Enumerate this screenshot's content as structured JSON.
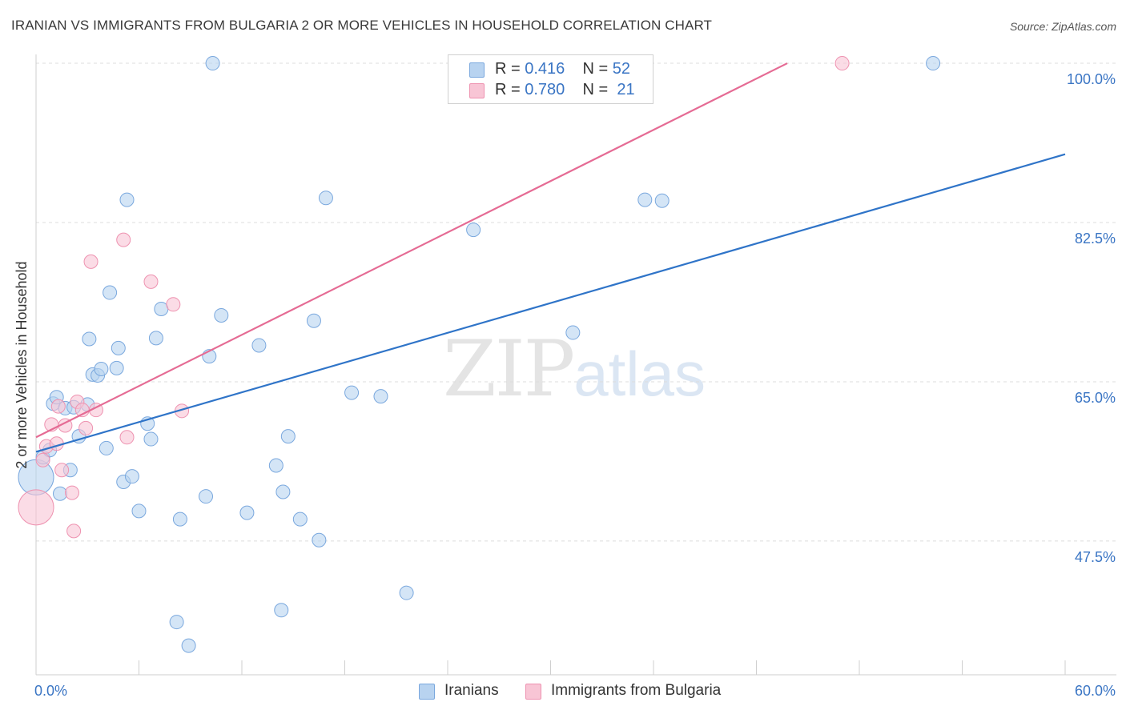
{
  "header": {
    "title": "IRANIAN VS IMMIGRANTS FROM BULGARIA 2 OR MORE VEHICLES IN HOUSEHOLD CORRELATION CHART",
    "source": "Source: ZipAtlas.com"
  },
  "watermark": {
    "zip": "ZIP",
    "atlas": "atlas"
  },
  "legend_top": {
    "rows": [
      {
        "r_label": "R =",
        "r_value": "0.416",
        "n_label": "N =",
        "n_value": "52"
      },
      {
        "r_label": "R =",
        "r_value": "0.780",
        "n_label": "N =",
        "n_value": "21"
      }
    ]
  },
  "colors": {
    "blue_fill": "#b8d3f0",
    "blue_stroke": "#7aa8de",
    "blue_line": "#2f74c8",
    "pink_fill": "#f8c5d5",
    "pink_stroke": "#ee92b0",
    "pink_line": "#e56b94",
    "tick_text": "#3a75c4"
  },
  "chart_data": {
    "type": "scatter",
    "title": "IRANIAN VS IMMIGRANTS FROM BULGARIA 2 OR MORE VEHICLES IN HOUSEHOLD CORRELATION CHART",
    "xlabel": "",
    "ylabel": "2 or more Vehicles in Household",
    "xlim": [
      0,
      60
    ],
    "ylim": [
      32.8,
      101.5
    ],
    "x_tick_labels": [
      {
        "value": 0,
        "label": "0.0%"
      },
      {
        "value": 60,
        "label": "60.0%"
      }
    ],
    "y_tick_labels": [
      {
        "value": 47.5,
        "label": "47.5%"
      },
      {
        "value": 65.0,
        "label": "65.0%"
      },
      {
        "value": 82.5,
        "label": "82.5%"
      },
      {
        "value": 100.0,
        "label": "100.0%"
      }
    ],
    "grid": true,
    "series": [
      {
        "name": "Iranians",
        "color": "#b8d3f0",
        "trend": {
          "x": [
            0,
            60
          ],
          "y": [
            57.3,
            90.0
          ]
        },
        "points": [
          {
            "x": 0.0,
            "y": 54.5,
            "big": true
          },
          {
            "x": 0.4,
            "y": 56.7
          },
          {
            "x": 0.8,
            "y": 57.5
          },
          {
            "x": 1.0,
            "y": 62.6
          },
          {
            "x": 1.2,
            "y": 63.3
          },
          {
            "x": 1.4,
            "y": 52.7
          },
          {
            "x": 1.7,
            "y": 62.1
          },
          {
            "x": 2.0,
            "y": 55.3
          },
          {
            "x": 2.2,
            "y": 62.2
          },
          {
            "x": 2.5,
            "y": 59.0
          },
          {
            "x": 3.0,
            "y": 62.5
          },
          {
            "x": 3.1,
            "y": 69.7
          },
          {
            "x": 3.3,
            "y": 65.8
          },
          {
            "x": 3.6,
            "y": 65.7
          },
          {
            "x": 3.8,
            "y": 66.4
          },
          {
            "x": 4.1,
            "y": 57.7
          },
          {
            "x": 4.3,
            "y": 74.8
          },
          {
            "x": 4.7,
            "y": 66.5
          },
          {
            "x": 4.8,
            "y": 68.7
          },
          {
            "x": 5.1,
            "y": 54.0
          },
          {
            "x": 5.3,
            "y": 85.0
          },
          {
            "x": 5.6,
            "y": 54.6
          },
          {
            "x": 6.0,
            "y": 50.8
          },
          {
            "x": 6.5,
            "y": 60.4
          },
          {
            "x": 6.7,
            "y": 58.7
          },
          {
            "x": 7.0,
            "y": 69.8
          },
          {
            "x": 7.3,
            "y": 73.0
          },
          {
            "x": 8.2,
            "y": 38.6
          },
          {
            "x": 8.4,
            "y": 49.9
          },
          {
            "x": 8.9,
            "y": 36.0
          },
          {
            "x": 9.9,
            "y": 52.4
          },
          {
            "x": 10.1,
            "y": 67.8
          },
          {
            "x": 10.3,
            "y": 100.0
          },
          {
            "x": 10.8,
            "y": 72.3
          },
          {
            "x": 12.3,
            "y": 50.6
          },
          {
            "x": 13.0,
            "y": 69.0
          },
          {
            "x": 14.0,
            "y": 55.8
          },
          {
            "x": 14.3,
            "y": 39.9
          },
          {
            "x": 14.4,
            "y": 52.9
          },
          {
            "x": 14.7,
            "y": 59.0
          },
          {
            "x": 15.4,
            "y": 49.9
          },
          {
            "x": 16.2,
            "y": 71.7
          },
          {
            "x": 16.5,
            "y": 47.6
          },
          {
            "x": 16.9,
            "y": 85.2
          },
          {
            "x": 18.4,
            "y": 63.8
          },
          {
            "x": 20.1,
            "y": 63.4
          },
          {
            "x": 21.6,
            "y": 41.8
          },
          {
            "x": 25.5,
            "y": 81.7
          },
          {
            "x": 31.3,
            "y": 70.4
          },
          {
            "x": 35.5,
            "y": 85.0
          },
          {
            "x": 36.5,
            "y": 84.9
          },
          {
            "x": 52.3,
            "y": 100.0
          }
        ]
      },
      {
        "name": "Immigrants from Bulgaria",
        "color": "#f8c5d5",
        "trend": {
          "x": [
            0,
            43.8
          ],
          "y": [
            58.9,
            100.0
          ]
        },
        "points": [
          {
            "x": 0.0,
            "y": 51.2,
            "big": true
          },
          {
            "x": 0.4,
            "y": 56.4
          },
          {
            "x": 0.6,
            "y": 57.9
          },
          {
            "x": 0.9,
            "y": 60.3
          },
          {
            "x": 1.2,
            "y": 58.2
          },
          {
            "x": 1.3,
            "y": 62.3
          },
          {
            "x": 1.5,
            "y": 55.3
          },
          {
            "x": 1.7,
            "y": 60.2
          },
          {
            "x": 2.1,
            "y": 52.8
          },
          {
            "x": 2.2,
            "y": 48.6
          },
          {
            "x": 2.4,
            "y": 62.8
          },
          {
            "x": 2.7,
            "y": 61.9
          },
          {
            "x": 2.9,
            "y": 59.9
          },
          {
            "x": 3.2,
            "y": 78.2
          },
          {
            "x": 3.5,
            "y": 61.9
          },
          {
            "x": 5.1,
            "y": 80.6
          },
          {
            "x": 5.3,
            "y": 58.9
          },
          {
            "x": 6.7,
            "y": 76.0
          },
          {
            "x": 8.0,
            "y": 73.5
          },
          {
            "x": 8.5,
            "y": 61.8
          },
          {
            "x": 47.0,
            "y": 100.0
          }
        ]
      }
    ]
  }
}
